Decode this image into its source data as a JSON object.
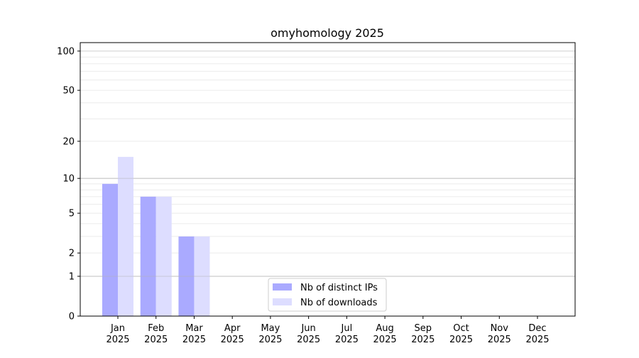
{
  "chart_data": {
    "type": "bar",
    "title": "omyhomology 2025",
    "xlabel": "",
    "ylabel": "",
    "yscale": "log(1+y)",
    "ylim": [
      0,
      116
    ],
    "yticks": [
      0,
      1,
      2,
      5,
      10,
      20,
      50,
      100
    ],
    "grid": true,
    "legend_position": "lower-center",
    "categories": [
      "Jan\n2025",
      "Feb\n2025",
      "Mar\n2025",
      "Apr\n2025",
      "May\n2025",
      "Jun\n2025",
      "Jul\n2025",
      "Aug\n2025",
      "Sep\n2025",
      "Oct\n2025",
      "Nov\n2025",
      "Dec\n2025"
    ],
    "series": [
      {
        "name": "Nb of distinct IPs",
        "color": "#aaaaff",
        "values": [
          9,
          7,
          3,
          0,
          0,
          0,
          0,
          0,
          0,
          0,
          0,
          0
        ]
      },
      {
        "name": "Nb of downloads",
        "color": "#ddddff",
        "values": [
          15,
          7,
          3,
          0,
          0,
          0,
          0,
          0,
          0,
          0,
          0,
          0
        ]
      }
    ]
  }
}
